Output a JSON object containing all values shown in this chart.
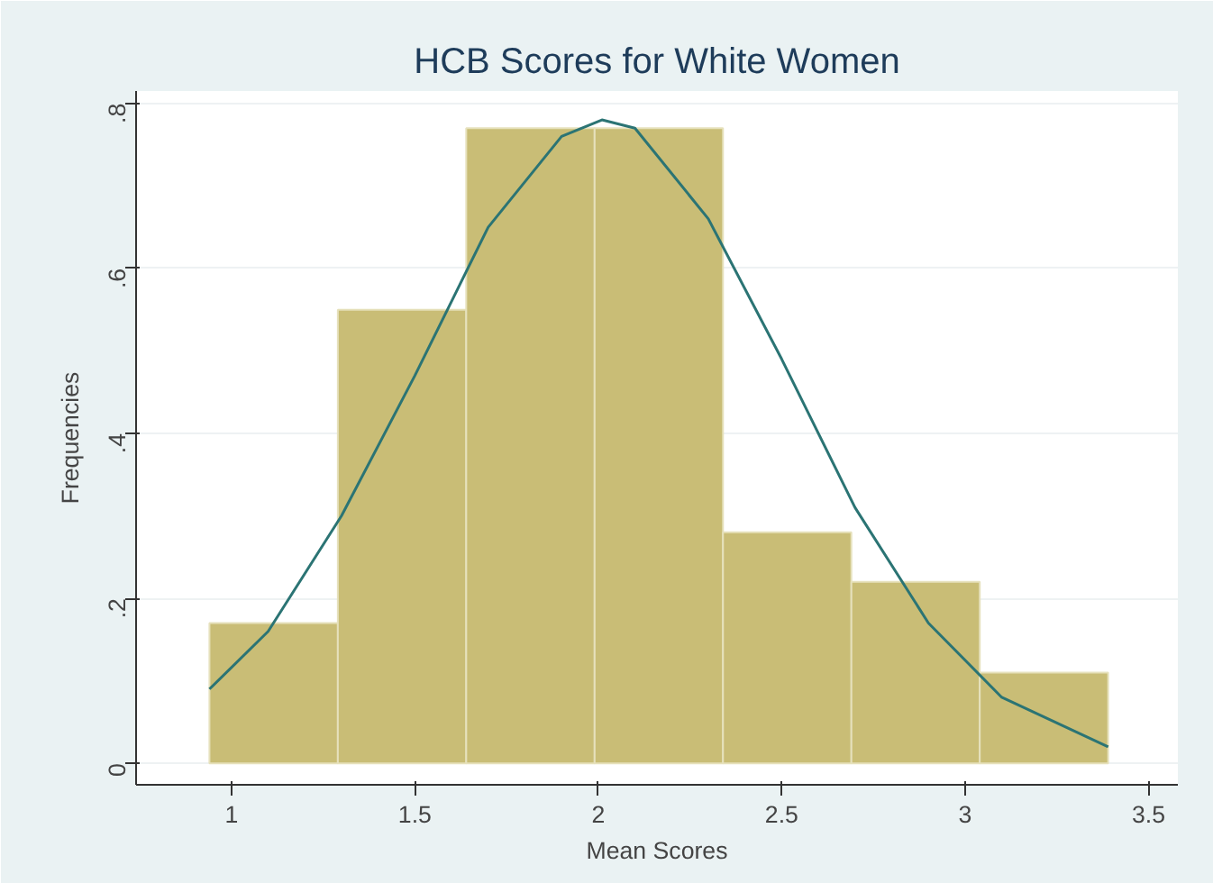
{
  "chart_data": {
    "type": "histogram",
    "title": "HCB Scores for White Women",
    "xlabel": "Mean Scores",
    "ylabel": "Frequencies",
    "bins": [
      0.94,
      1.29,
      1.64,
      1.99,
      2.34,
      2.69,
      3.04,
      3.39
    ],
    "values": [
      0.17,
      0.55,
      0.77,
      0.77,
      0.28,
      0.22,
      0.11
    ],
    "color": "#c9bd76",
    "series": [
      {
        "type": "line",
        "color": "#2b7474",
        "x": [
          0.94,
          1.1,
          1.3,
          1.5,
          1.7,
          1.9,
          2.01,
          2.1,
          2.3,
          2.5,
          2.7,
          2.9,
          3.1,
          3.39
        ],
        "values": [
          0.09,
          0.16,
          0.3,
          0.47,
          0.65,
          0.76,
          0.78,
          0.77,
          0.66,
          0.49,
          0.31,
          0.17,
          0.08,
          0.02
        ]
      }
    ],
    "xlim": [
      0.74,
      3.58
    ],
    "xticks": [
      1,
      1.5,
      2,
      2.5,
      3,
      3.5
    ],
    "ylim": [
      -0.026,
      0.815
    ],
    "yticks": [
      0,
      {
        "value": 0.2,
        "label": ".2"
      },
      {
        "value": 0.4,
        "label": ".4"
      },
      {
        "value": 0.6,
        "label": ".6"
      },
      {
        "value": 0.8,
        "label": ".8"
      }
    ],
    "grid": "y"
  }
}
